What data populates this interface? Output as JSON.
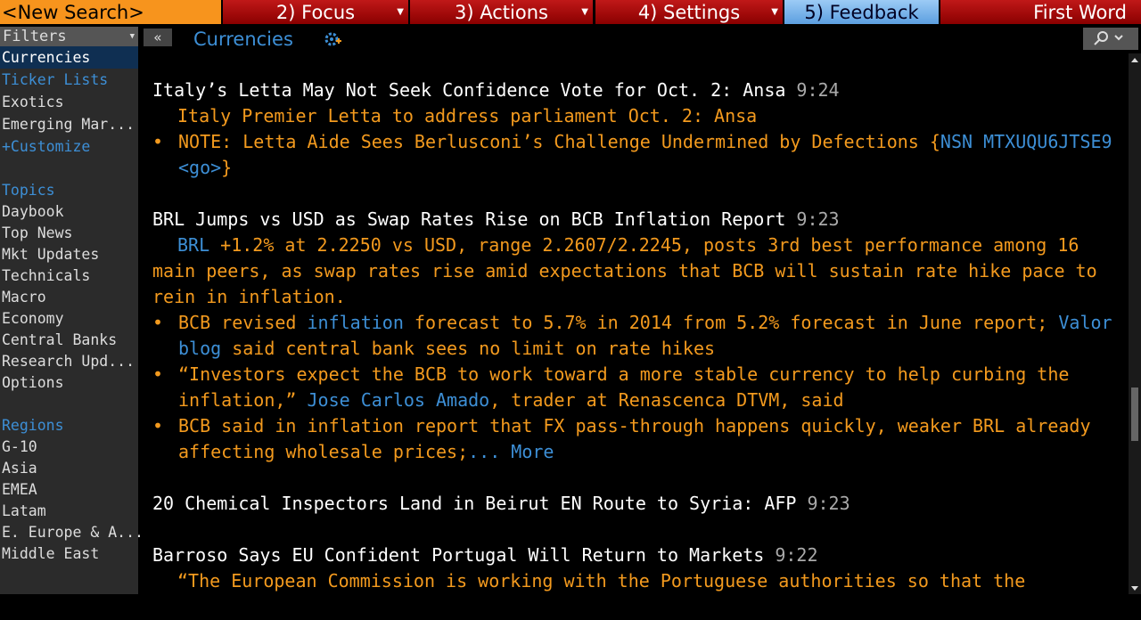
{
  "toolbar": {
    "search": "<New Search>",
    "tabs": [
      "2) Focus",
      "3) Actions",
      "4) Settings",
      "5) Feedback"
    ],
    "right": "First Word"
  },
  "sidebar": {
    "title": "Filters",
    "items": [
      "Currencies",
      "Ticker Lists",
      "Exotics",
      "Emerging Mar...",
      "+Customize"
    ],
    "topics": {
      "heading": "Topics",
      "items": [
        "Daybook",
        "Top News",
        "Mkt Updates",
        "Technicals",
        "Macro",
        "Economy",
        "Central Banks",
        "Research Upd...",
        "Options"
      ]
    },
    "regions": {
      "heading": "Regions",
      "items": [
        "G-10",
        "Asia",
        "EMEA",
        "Latam",
        "E. Europe & A...",
        "Middle East"
      ]
    }
  },
  "header": {
    "collapse": "«",
    "title": "Currencies"
  },
  "stories": [
    {
      "headline": "Italy’s Letta May Not Seek Confidence Vote for Oct. 2: Ansa",
      "time": "9:24",
      "lead": [
        {
          "text": "Italy Premier Letta to address parliament Oct. 2: Ansa"
        }
      ],
      "bullets": [
        [
          {
            "text": "NOTE: Letta Aide Sees Berlusconi’s Challenge Undermined by Defections {"
          },
          {
            "text": "NSN MTXUQU6JTSE9 <go>",
            "color": "#3d8fd6"
          },
          {
            "text": "}"
          }
        ]
      ]
    },
    {
      "headline": "BRL Jumps vs USD as Swap Rates Rise on BCB Inflation Report",
      "time": "9:23",
      "lead": [
        {
          "text": "BRL",
          "color": "#3d8fd6"
        },
        {
          "text": " +1.2% at 2.2250 vs USD, range 2.2607/2.2245, posts 3rd best performance among 16 main peers, as swap rates rise amid expectations that BCB will sustain rate hike pace to rein in inflation."
        }
      ],
      "bullets": [
        [
          {
            "text": "BCB revised "
          },
          {
            "text": "inflation",
            "color": "#3d8fd6"
          },
          {
            "text": " forecast to 5.7% in 2014 from 5.2% forecast in June report; "
          },
          {
            "text": "Valor blog",
            "color": "#3d8fd6"
          },
          {
            "text": " said central bank sees no limit on rate hikes"
          }
        ],
        [
          {
            "text": "“Investors expect the BCB to work toward a more stable currency to help curbing the inflation,” "
          },
          {
            "text": "Jose Carlos Amado",
            "color": "#3d8fd6"
          },
          {
            "text": ", trader at Renascenca DTVM, said"
          }
        ],
        [
          {
            "text": "BCB said in inflation report that FX pass-through happens quickly, weaker BRL already affecting wholesale prices;"
          },
          {
            "text": "... More",
            "color": "#3d8fd6"
          }
        ]
      ]
    },
    {
      "headline": "20 Chemical Inspectors Land in Beirut EN Route to Syria: AFP",
      "time": "9:23"
    },
    {
      "headline": "Barroso Says EU Confident Portugal Will Return to Markets",
      "time": "9:22",
      "lead": [
        {
          "text": "“The European Commission is working with the Portuguese authorities so that the"
        }
      ]
    }
  ]
}
